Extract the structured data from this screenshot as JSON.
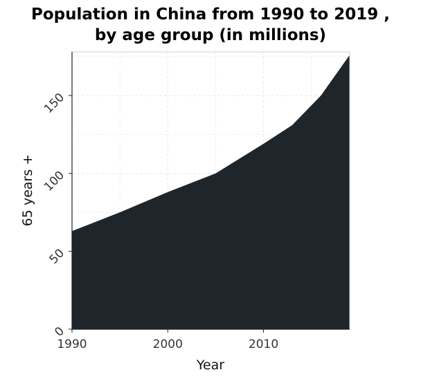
{
  "chart_data": {
    "type": "area",
    "title_lines": [
      "Population in China from 1990 to 2019 ,",
      "by age group (in millions)"
    ],
    "xlabel": "Year",
    "ylabel": "65 years +",
    "x": [
      1990,
      1995,
      2000,
      2005,
      2010,
      2013,
      2016,
      2019
    ],
    "values": [
      63,
      75,
      88,
      100,
      119,
      131,
      150,
      176
    ],
    "xlim": [
      1990,
      2019
    ],
    "ylim": [
      0,
      178
    ],
    "x_ticks": [
      1990,
      2000,
      2010
    ],
    "x_tick_labels": [
      "1990",
      "2000",
      "2010"
    ],
    "y_ticks": [
      0,
      50,
      100,
      150
    ],
    "y_tick_labels": [
      "0",
      "50",
      "100",
      "150"
    ],
    "grid": true,
    "fill_color": "#1e252b",
    "grid_color": "#ebebeb"
  }
}
